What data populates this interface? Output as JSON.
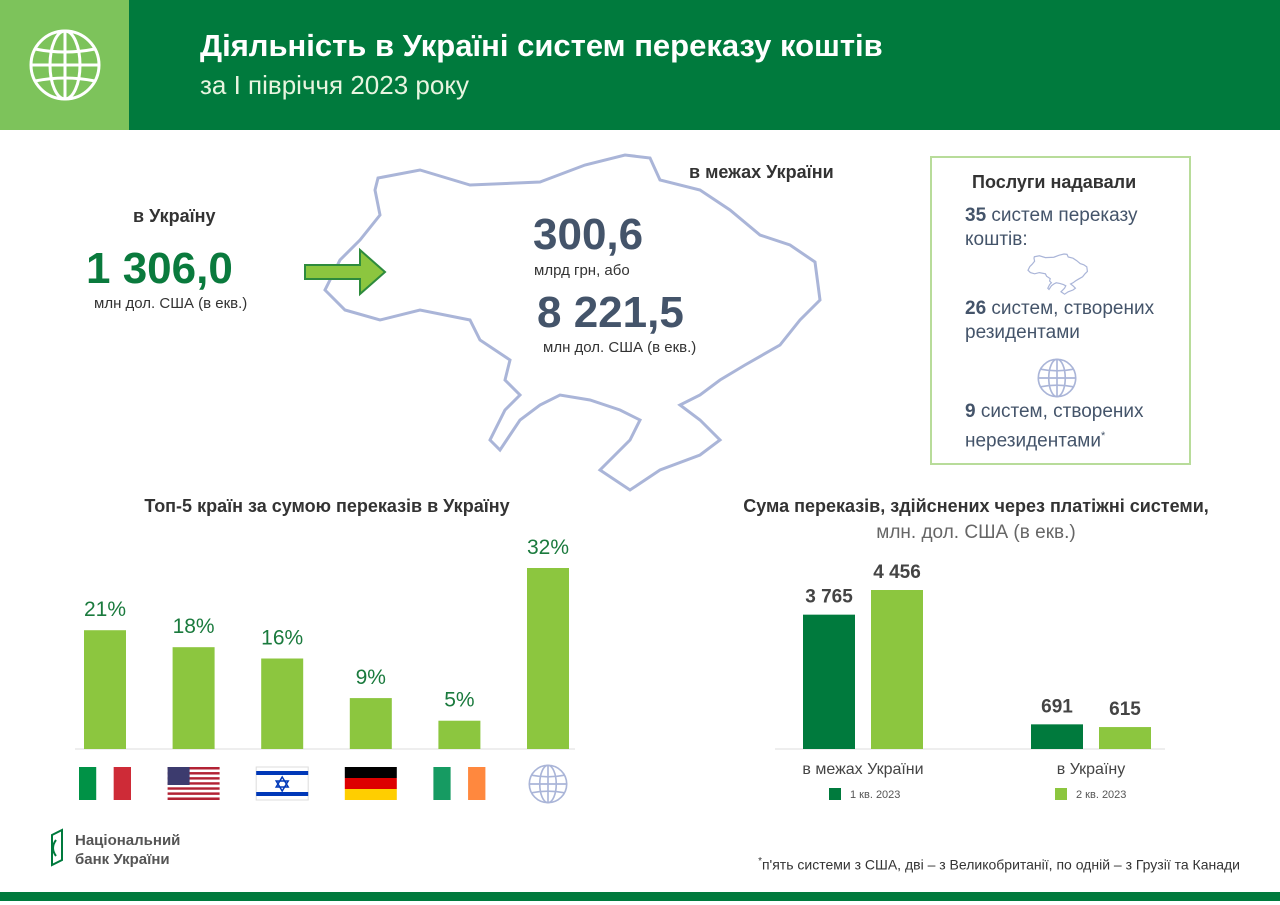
{
  "header": {
    "title": "Діяльність в Україні систем переказу коштів",
    "subtitle": "за І півріччя 2023 року"
  },
  "inflow": {
    "label": "в Україну",
    "value": "1 306,0",
    "unit": "млн дол. США (в екв.)"
  },
  "domestic": {
    "label": "в межах України",
    "value_uah": "300,6",
    "unit_uah": "млрд грн, або",
    "value_usd": "8 221,5",
    "unit_usd": "млн дол. США (в екв.)"
  },
  "services": {
    "title": "Послуги надавали",
    "items": [
      {
        "number": 35,
        "text": "систем переказу коштів:"
      },
      {
        "number": 26,
        "text": "систем, створених резидентами"
      },
      {
        "number": 9,
        "text": "систем, створених нерезидентами",
        "mark": "*"
      }
    ]
  },
  "chart_data": [
    {
      "type": "bar",
      "title": "Топ-5 країн за сумою переказів в Україну",
      "categories": [
        null,
        null,
        null,
        null,
        null,
        null
      ],
      "values": [
        21,
        18,
        16,
        9,
        5,
        32
      ],
      "value_labels": [
        "21%",
        "18%",
        "16%",
        "9%",
        "5%",
        "32%"
      ],
      "color": "#8cc63f"
    },
    {
      "type": "bar",
      "title": "Сума переказів, здійснених через платіжні системи,",
      "subtitle": "млн. дол. США (в екв.)",
      "categories": [
        "в межах України",
        "в Україну"
      ],
      "series": [
        {
          "name": "1 кв. 2023",
          "color": "#007a3d",
          "values": [
            3765,
            691
          ],
          "value_labels": [
            "3 765",
            "691"
          ]
        },
        {
          "name": "2 кв. 2023",
          "color": "#8cc63f",
          "values": [
            4456,
            615
          ],
          "value_labels": [
            "4 456",
            "615"
          ]
        }
      ]
    }
  ],
  "logo": {
    "line1": "Національний",
    "line2": "банк України"
  },
  "footnote": {
    "mark": "*",
    "text": "п'ять системи з США, дві – з Великобританії, по одній – з Грузії та Канади"
  }
}
